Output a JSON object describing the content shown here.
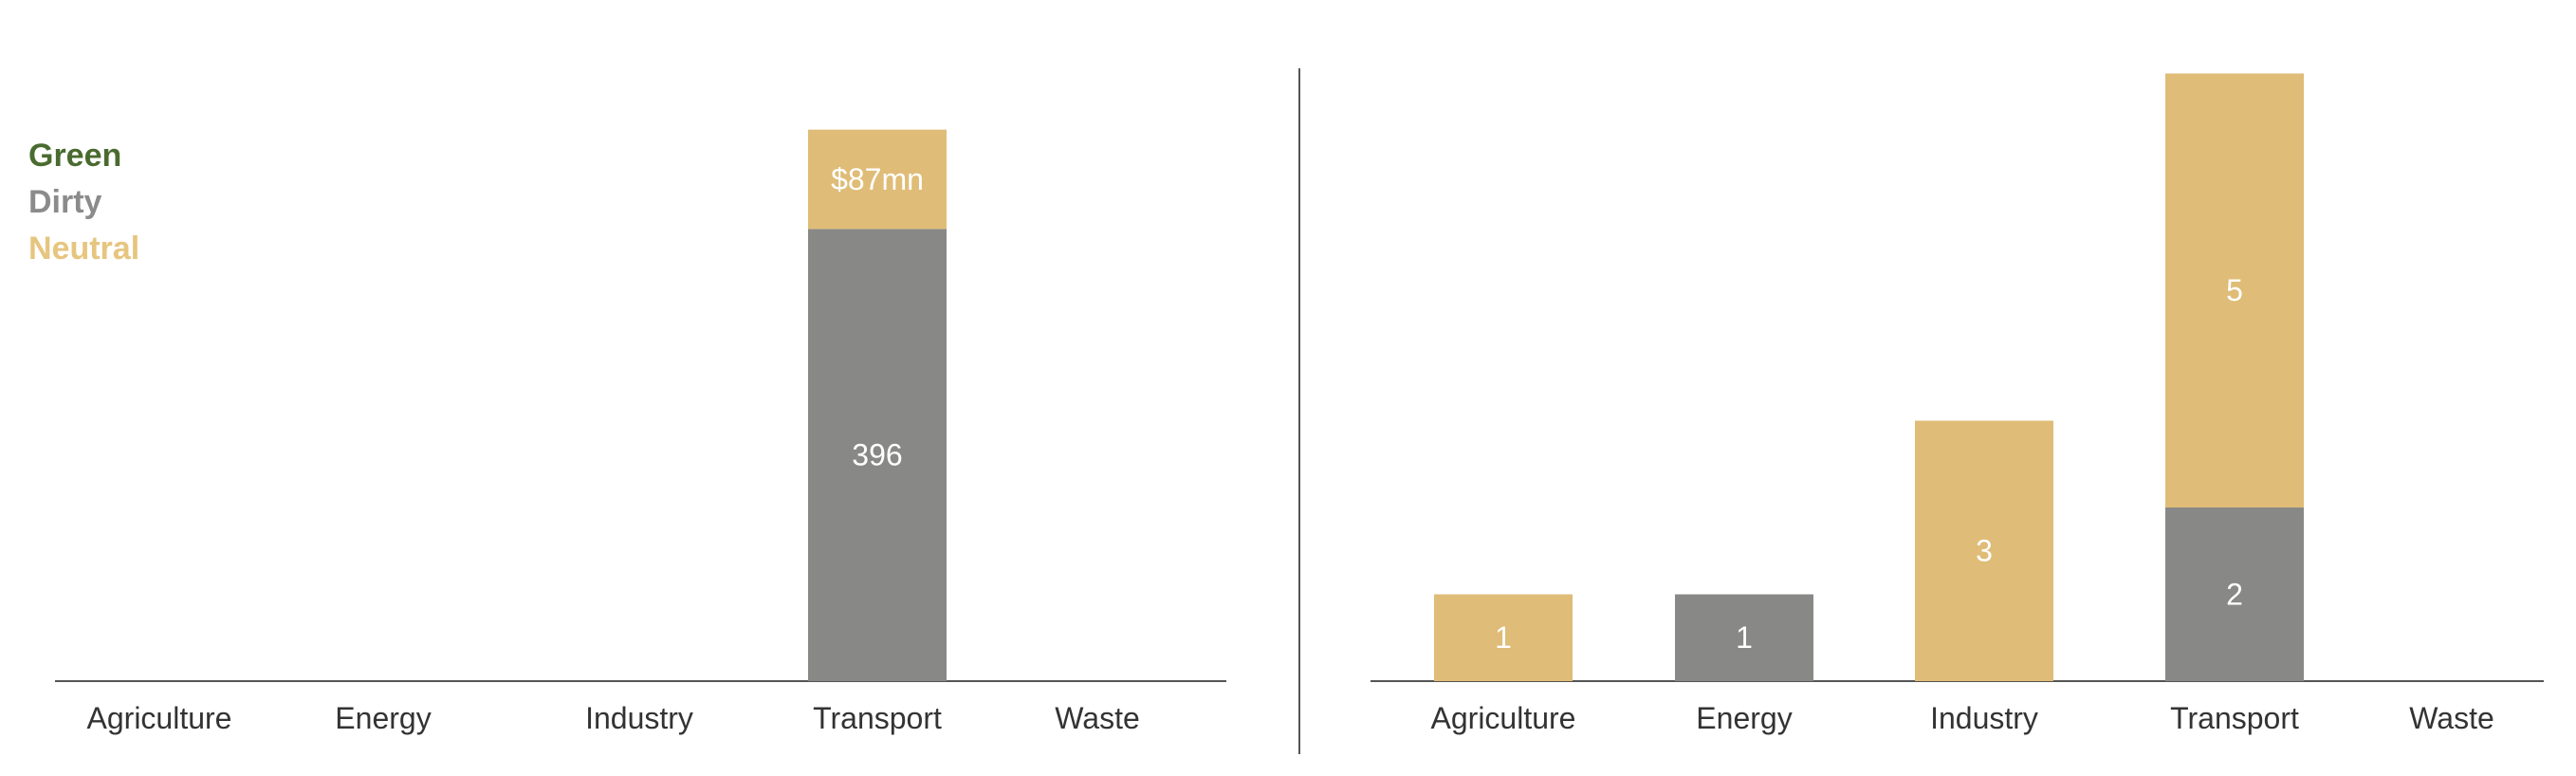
{
  "legend": {
    "green": "Green",
    "dirty": "Dirty",
    "neutral": "Neutral"
  },
  "colors": {
    "green": "#4a6b2f",
    "dirty": "#888886",
    "neutral": "#dfbc77",
    "neutral_text": "#e6c57f",
    "dirty_text": "#8b8b8b",
    "axis": "#555555",
    "label_text": "#333333",
    "bar_label": "#ffffff"
  },
  "chart_data": [
    {
      "type": "bar",
      "stacked": true,
      "categories": [
        "Agriculture",
        "Energy",
        "Industry",
        "Transport",
        "Waste"
      ],
      "series": [
        {
          "name": "Dirty",
          "color_key": "dirty",
          "values": [
            0,
            0,
            0,
            396,
            0
          ]
        },
        {
          "name": "Neutral",
          "color_key": "neutral",
          "values": [
            0,
            0,
            0,
            87,
            0
          ]
        },
        {
          "name": "Green",
          "color_key": "green",
          "values": [
            0,
            0,
            0,
            0,
            0
          ]
        }
      ],
      "data_labels": [
        {
          "category": "Transport",
          "series": "Dirty",
          "text": "396"
        },
        {
          "category": "Transport",
          "series": "Neutral",
          "text": "$87mn"
        }
      ],
      "ylim": [
        0,
        555
      ],
      "grid": false
    },
    {
      "type": "bar",
      "stacked": true,
      "categories": [
        "Agriculture",
        "Energy",
        "Industry",
        "Transport",
        "Waste"
      ],
      "series": [
        {
          "name": "Dirty",
          "color_key": "dirty",
          "values": [
            0,
            1,
            0,
            2,
            0
          ]
        },
        {
          "name": "Neutral",
          "color_key": "neutral",
          "values": [
            1,
            0,
            3,
            5,
            0
          ]
        },
        {
          "name": "Green",
          "color_key": "green",
          "values": [
            0,
            0,
            0,
            0,
            0
          ]
        }
      ],
      "data_labels": [
        {
          "category": "Agriculture",
          "series": "Neutral",
          "text": "1"
        },
        {
          "category": "Energy",
          "series": "Dirty",
          "text": "1"
        },
        {
          "category": "Industry",
          "series": "Neutral",
          "text": "3"
        },
        {
          "category": "Transport",
          "series": "Dirty",
          "text": "2"
        },
        {
          "category": "Transport",
          "series": "Neutral",
          "text": "5"
        }
      ],
      "ylim": [
        0,
        7.3
      ],
      "grid": false
    }
  ]
}
